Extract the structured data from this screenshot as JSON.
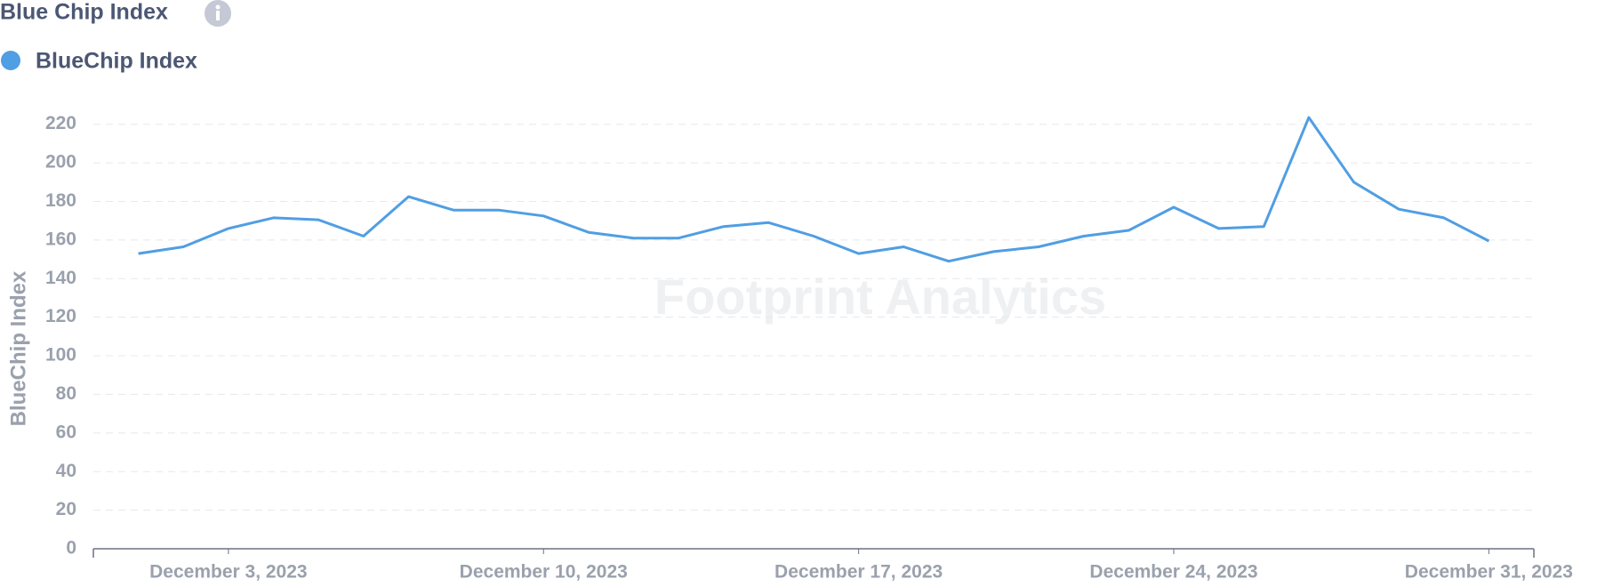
{
  "chart_data": {
    "type": "line",
    "title": "Blue Chip Index",
    "y_label": "BlueChip Index",
    "watermark": "Footprint Analytics",
    "x": [
      "2023-12-01",
      "2023-12-02",
      "2023-12-03",
      "2023-12-04",
      "2023-12-05",
      "2023-12-06",
      "2023-12-07",
      "2023-12-08",
      "2023-12-09",
      "2023-12-10",
      "2023-12-11",
      "2023-12-12",
      "2023-12-13",
      "2023-12-14",
      "2023-12-15",
      "2023-12-16",
      "2023-12-17",
      "2023-12-18",
      "2023-12-19",
      "2023-12-20",
      "2023-12-21",
      "2023-12-22",
      "2023-12-23",
      "2023-12-24",
      "2023-12-25",
      "2023-12-26",
      "2023-12-27",
      "2023-12-28",
      "2023-12-29",
      "2023-12-30",
      "2023-12-31"
    ],
    "series": [
      {
        "name": "BlueChip Index",
        "color": "#509ee3",
        "values": [
          153,
          156.5,
          166,
          171.5,
          170.5,
          162,
          182.5,
          175.5,
          175.5,
          172.5,
          164,
          161,
          161,
          167,
          169,
          162,
          153,
          156.5,
          149,
          154,
          156.5,
          162,
          165,
          177,
          166,
          167,
          223.5,
          190,
          176,
          171.5,
          159.5
        ]
      }
    ],
    "xlim": [
      "2023-11-30",
      "2024-01-01"
    ],
    "xticks": [
      {
        "value": "2023-12-03",
        "label": "December 3, 2023"
      },
      {
        "value": "2023-12-10",
        "label": "December 10, 2023"
      },
      {
        "value": "2023-12-17",
        "label": "December 17, 2023"
      },
      {
        "value": "2023-12-24",
        "label": "December 24, 2023"
      },
      {
        "value": "2023-12-31",
        "label": "December 31, 2023"
      }
    ],
    "ylim": [
      0,
      230
    ],
    "yticks": [
      0,
      20,
      40,
      60,
      80,
      100,
      120,
      140,
      160,
      180,
      200,
      220
    ],
    "grid": true
  }
}
